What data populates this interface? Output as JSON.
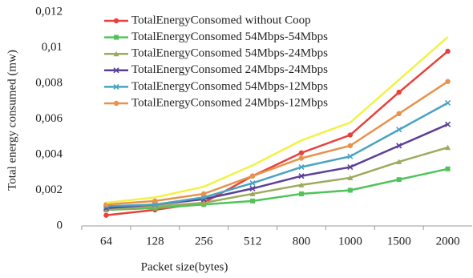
{
  "chart_data": {
    "type": "line",
    "x_label": "Packet size(bytes)",
    "y_label": "Total energy consumed (mw)",
    "categories": [
      "64",
      "128",
      "256",
      "512",
      "800",
      "1000",
      "1500",
      "2000"
    ],
    "ylim": [
      0,
      0.012
    ],
    "yticks": [
      0,
      {
        "value": 0.002,
        "label": "0,002"
      },
      {
        "value": 0.004,
        "label": "0,004"
      },
      {
        "value": 0.006,
        "label": "0,006"
      },
      {
        "value": 0.008,
        "label": "0,008"
      },
      {
        "value": 0.01,
        "label": "0,01"
      },
      {
        "value": 0.012,
        "label": "0,012"
      }
    ],
    "series": [
      {
        "name": "TotalEnergyConsomed without Coop",
        "color": "#e8413c",
        "marker": "circle",
        "values": [
          0.0006,
          0.0009,
          0.0013,
          0.0028,
          0.0041,
          0.0051,
          0.0075,
          0.0098
        ]
      },
      {
        "name": "TotalEnergyConsomed 54Mbps-54Mbps",
        "color": "#4ec45a",
        "marker": "square",
        "values": [
          0.0009,
          0.001,
          0.0012,
          0.0014,
          0.0018,
          0.002,
          0.0026,
          0.0032
        ]
      },
      {
        "name": "TotalEnergyConsomed 54Mbps-24Mbps",
        "color": "#9bab5b",
        "marker": "triangle",
        "values": [
          0.0009,
          0.0011,
          0.0013,
          0.0018,
          0.0023,
          0.0027,
          0.0036,
          0.0044
        ]
      },
      {
        "name": "TotalEnergyConsomed 24Mbps-24Mbps",
        "color": "#5b3f98",
        "marker": "x",
        "values": [
          0.001,
          0.0012,
          0.0015,
          0.0021,
          0.0028,
          0.0033,
          0.0045,
          0.0057
        ]
      },
      {
        "name": "TotalEnergyConsomed 54Mbps-12Mbps",
        "color": "#4aa3c0",
        "marker": "x",
        "values": [
          0.0011,
          0.0012,
          0.0016,
          0.0024,
          0.0033,
          0.0039,
          0.0054,
          0.0069
        ]
      },
      {
        "name": "TotalEnergyConsomed 24Mbps-12Mbps",
        "color": "#e8924a",
        "marker": "circle",
        "values": [
          0.0012,
          0.0014,
          0.0018,
          0.0028,
          0.0038,
          0.0045,
          0.0063,
          0.0081
        ]
      },
      {
        "name": null,
        "color": "#f2f244",
        "marker": "none",
        "values": [
          0.0013,
          0.0016,
          0.0022,
          0.0034,
          0.0048,
          0.0058,
          0.0082,
          0.0106
        ]
      }
    ]
  }
}
